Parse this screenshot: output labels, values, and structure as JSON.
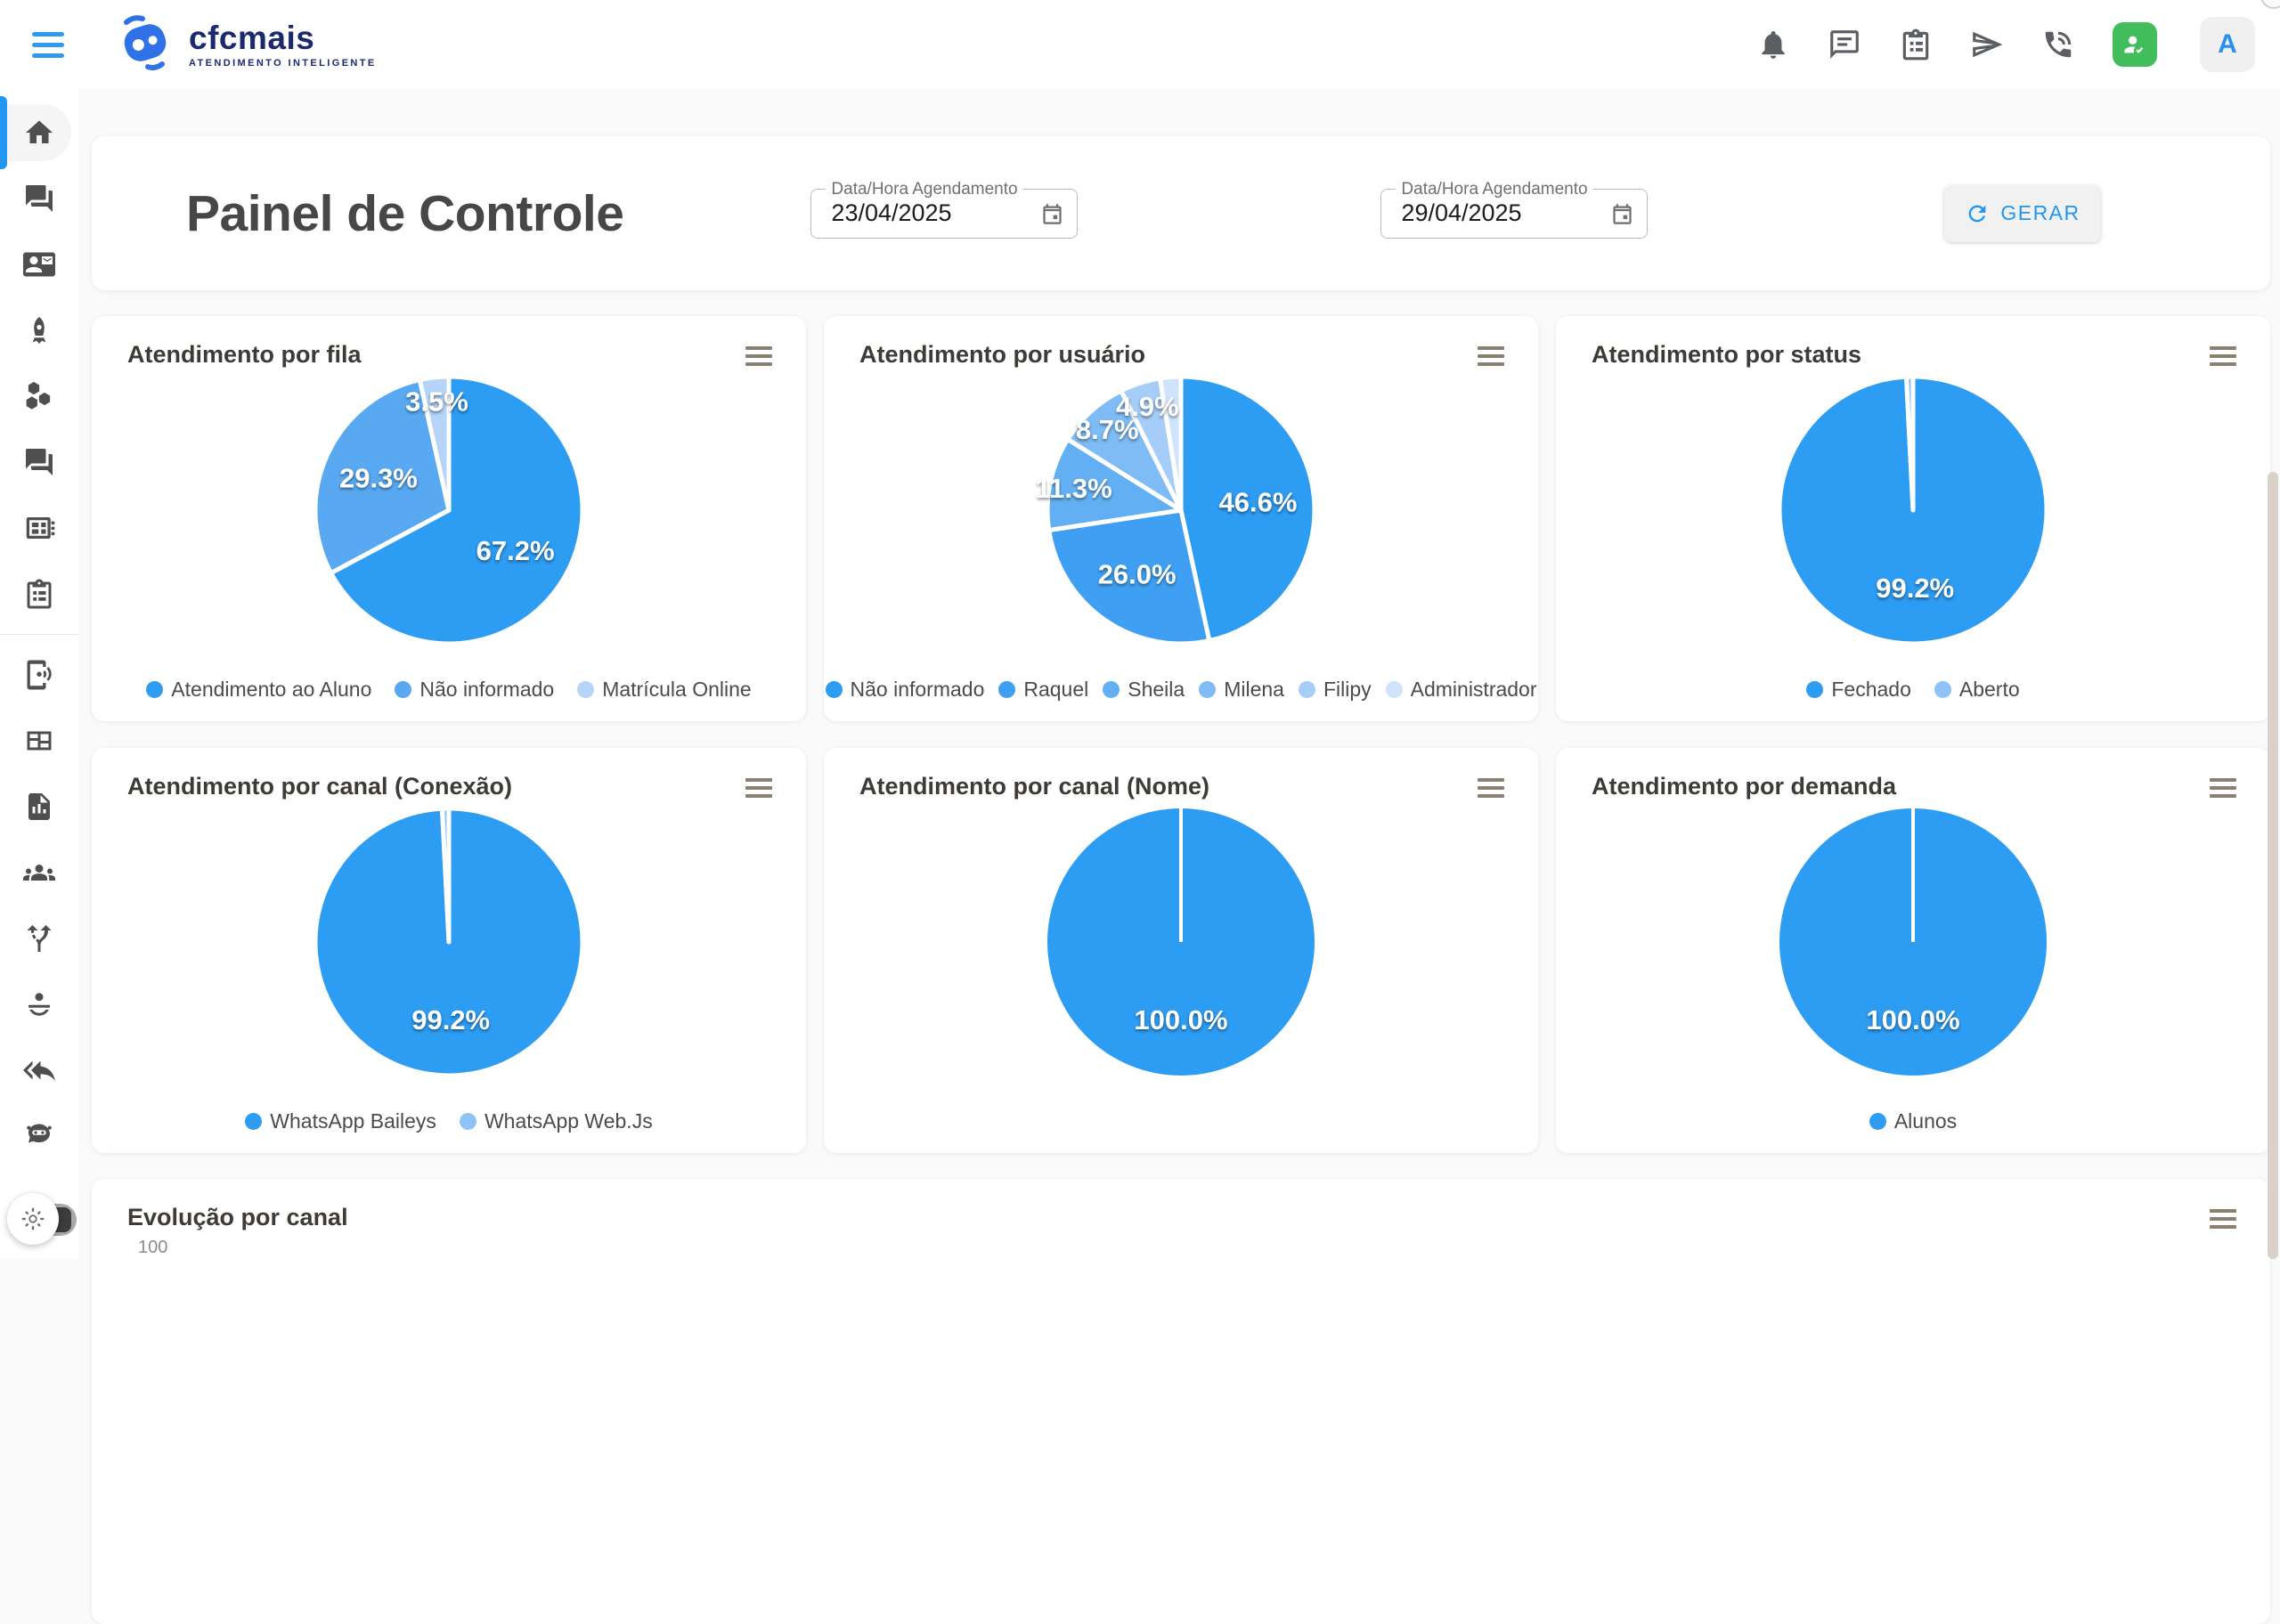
{
  "topbar": {
    "logo_name": "cfcmais",
    "logo_subtitle": "ATENDIMENTO INTELIGENTE",
    "icons": [
      "menu-icon",
      "bell-icon",
      "chat-icon",
      "clipboard-list-icon",
      "send-icon",
      "phone-in-talk-icon",
      "person-check-icon"
    ],
    "user_initial": "A"
  },
  "sidebar": {
    "icons_top": [
      "home-icon",
      "forum-icon",
      "contact-card-icon",
      "rocket-icon",
      "hexagons-icon",
      "forum-icon",
      "chip-grid-icon",
      "clipboard-tasks-icon"
    ],
    "icons_bottom": [
      "device-ring-icon",
      "view-quilt-icon",
      "file-chart-icon",
      "groups-icon",
      "split-route-icon",
      "agent-desk-icon",
      "reply-all-icon",
      "robot-icon"
    ],
    "theme_toggle": "sun-theme-toggle"
  },
  "header": {
    "title": "Painel de Controle",
    "date_from": {
      "label": "Data/Hora Agendamento",
      "value": "23/04/2025"
    },
    "date_to": {
      "label": "Data/Hora Agendamento",
      "value": "29/04/2025"
    },
    "generate_label": "GERAR"
  },
  "colors": {
    "accent_blue": "#2196f3",
    "logo_navy": "#1b2a70",
    "green_button": "#41bd5b",
    "card_menu": "#8a8173",
    "pie_palette": [
      "#2d9cf3",
      "#3fa0f3",
      "#62b0f3",
      "#7fbcf5",
      "#a5cdf8",
      "#cfe3fb"
    ]
  },
  "chart_data": [
    {
      "type": "pie",
      "title": "Atendimento por fila",
      "labels": [
        "Atendimento ao Aluno",
        "Não informado",
        "Matrícula Online"
      ],
      "values": [
        67.2,
        29.3,
        3.5
      ],
      "value_labels": [
        "67.2%",
        "29.3%",
        "3.5%"
      ],
      "colors": [
        "#2d9cf3",
        "#58a9f1",
        "#b5d4f8"
      ],
      "legend_visible": true
    },
    {
      "type": "pie",
      "title": "Atendimento por usuário",
      "labels": [
        "Não informado",
        "Raquel",
        "Sheila",
        "Milena",
        "Filipy",
        "Administrador"
      ],
      "values": [
        46.6,
        26.0,
        11.3,
        8.7,
        4.9,
        2.5
      ],
      "value_labels": [
        "46.6%",
        "26.0%",
        "11.3%",
        "8.7%",
        "4.9%",
        ""
      ],
      "colors": [
        "#2d9cf3",
        "#3fa0f3",
        "#62b0f3",
        "#7fbcf5",
        "#a5cdf8",
        "#cfe3fb"
      ],
      "legend_visible": true
    },
    {
      "type": "pie",
      "title": "Atendimento por status",
      "labels": [
        "Fechado",
        "Aberto"
      ],
      "values": [
        99.2,
        0.8
      ],
      "value_labels": [
        "99.2%",
        ""
      ],
      "colors": [
        "#2d9cf3",
        "#8fc3f7"
      ],
      "legend_visible": true
    },
    {
      "type": "pie",
      "title": "Atendimento por canal (Conexão)",
      "labels": [
        "WhatsApp Baileys",
        "WhatsApp Web.Js"
      ],
      "values": [
        99.2,
        0.8
      ],
      "value_labels": [
        "99.2%",
        ""
      ],
      "colors": [
        "#2d9cf3",
        "#8fc3f7"
      ],
      "legend_visible": true
    },
    {
      "type": "pie",
      "title": "Atendimento por canal (Nome)",
      "labels": [],
      "values": [
        100.0
      ],
      "value_labels": [
        "100.0%"
      ],
      "colors": [
        "#2d9cf3"
      ],
      "legend_visible": false
    },
    {
      "type": "pie",
      "title": "Atendimento por demanda",
      "labels": [
        "Alunos"
      ],
      "values": [
        100.0
      ],
      "value_labels": [
        "100.0%"
      ],
      "colors": [
        "#2d9cf3"
      ],
      "legend_visible": true
    },
    {
      "type": "line",
      "title": "Evolução por canal",
      "visible_ticks": [
        "100"
      ]
    }
  ]
}
